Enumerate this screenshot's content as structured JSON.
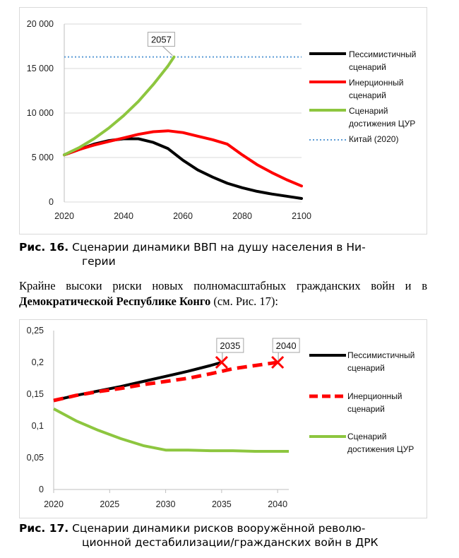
{
  "figure16": {
    "caption_label": "Рис. 16.",
    "caption_line1": "Сценарии динамики ВВП на душу населения в Ни-",
    "caption_line2": "герии"
  },
  "paragraph": {
    "text_part1": "Крайне высоки риски новых полномасштабных гражданских войн и в ",
    "text_bold": "Демократической Республике Конго",
    "text_part2": " (см. Рис. 17):"
  },
  "figure17": {
    "caption_label": "Рис. 17.",
    "caption_line1": "Сценарии динамики рисков вооружённой револю-",
    "caption_line2": "ционной дестабилизации/гражданских войн в ДРК"
  },
  "chart_data": [
    {
      "type": "line",
      "x_ticks": [
        2020,
        2040,
        2060,
        2080,
        2100
      ],
      "y_ticks": [
        "0",
        "5 000",
        "10 000",
        "15 000",
        "20 000"
      ],
      "xlim": [
        2020,
        2100
      ],
      "ylim": [
        0,
        20000
      ],
      "grid": "horizontal",
      "legend_position": "right",
      "callout": {
        "label": "2057",
        "x": 2057,
        "y": 16300
      },
      "series": [
        {
          "name": "Пессимистичный сценарий",
          "color": "#000000",
          "style": "solid",
          "x": [
            2020,
            2025,
            2030,
            2035,
            2040,
            2045,
            2050,
            2055,
            2060,
            2065,
            2070,
            2075,
            2080,
            2085,
            2090,
            2095,
            2100
          ],
          "y": [
            5300,
            5900,
            6500,
            6900,
            7100,
            7100,
            6700,
            6000,
            4700,
            3600,
            2800,
            2100,
            1600,
            1200,
            900,
            650,
            400
          ]
        },
        {
          "name": "Инерционный сценарий",
          "color": "#ff0000",
          "style": "solid",
          "x": [
            2020,
            2025,
            2030,
            2035,
            2040,
            2045,
            2050,
            2055,
            2060,
            2065,
            2070,
            2075,
            2080,
            2085,
            2090,
            2095,
            2100
          ],
          "y": [
            5300,
            5900,
            6400,
            6800,
            7200,
            7600,
            7900,
            8000,
            7800,
            7400,
            7000,
            6500,
            5300,
            4200,
            3300,
            2500,
            1800
          ]
        },
        {
          "name": "Сценарий достижения ЦУР",
          "color": "#8dc63f",
          "style": "solid",
          "x": [
            2020,
            2025,
            2030,
            2035,
            2040,
            2045,
            2050,
            2055,
            2057
          ],
          "y": [
            5300,
            6100,
            7100,
            8300,
            9700,
            11300,
            13200,
            15300,
            16300
          ]
        },
        {
          "name": "Китай (2020)",
          "color": "#5b9bd5",
          "style": "dotted",
          "x": [
            2020,
            2100
          ],
          "y": [
            16300,
            16300
          ]
        }
      ]
    },
    {
      "type": "line",
      "x_ticks": [
        2020,
        2025,
        2030,
        2035,
        2040
      ],
      "y_ticks": [
        "0",
        "0,05",
        "0,1",
        "0,15",
        "0,2",
        "0,25"
      ],
      "xlim": [
        2020,
        2041
      ],
      "ylim": [
        0,
        0.25
      ],
      "grid": "none",
      "legend_position": "right",
      "callouts": [
        {
          "label": "2035",
          "x": 2035,
          "y": 0.2
        },
        {
          "label": "2040",
          "x": 2040,
          "y": 0.2
        }
      ],
      "series": [
        {
          "name": "Пессимистичный сценарий",
          "color": "#000000",
          "style": "solid",
          "x": [
            2020,
            2022,
            2024,
            2026,
            2028,
            2030,
            2032,
            2034,
            2035
          ],
          "y": [
            0.14,
            0.148,
            0.155,
            0.162,
            0.17,
            0.178,
            0.186,
            0.195,
            0.2
          ]
        },
        {
          "name": "Инерционный сценарий",
          "color": "#ff0000",
          "style": "dashed",
          "x": [
            2020,
            2022,
            2024,
            2026,
            2028,
            2030,
            2032,
            2034,
            2035,
            2036,
            2038,
            2040
          ],
          "y": [
            0.14,
            0.148,
            0.154,
            0.159,
            0.165,
            0.17,
            0.175,
            0.182,
            0.186,
            0.19,
            0.195,
            0.2
          ]
        },
        {
          "name": "Сценарий достижения ЦУР",
          "color": "#8dc63f",
          "style": "solid",
          "x": [
            2020,
            2022,
            2024,
            2026,
            2028,
            2030,
            2032,
            2034,
            2036,
            2038,
            2040,
            2041
          ],
          "y": [
            0.127,
            0.108,
            0.093,
            0.08,
            0.069,
            0.062,
            0.062,
            0.061,
            0.061,
            0.06,
            0.06,
            0.06
          ]
        }
      ]
    }
  ]
}
